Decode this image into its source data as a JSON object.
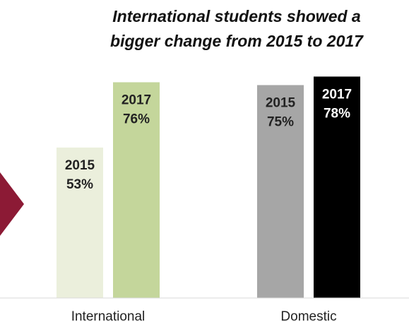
{
  "title_lines": [
    "International students showed a",
    "bigger change from 2015 to 2017"
  ],
  "chart_data": {
    "type": "bar",
    "title": "International students showed a bigger change from 2015 to 2017",
    "xlabel": "",
    "ylabel": "",
    "ylim": [
      0,
      100
    ],
    "grid": false,
    "categories": [
      "International",
      "Domestic"
    ],
    "series": [
      {
        "name": "2015",
        "values": [
          53,
          75
        ],
        "labels": [
          "53%",
          "75%"
        ],
        "colors": [
          "#ebefdc",
          "#a6a6a6"
        ]
      },
      {
        "name": "2017",
        "values": [
          76,
          78
        ],
        "labels": [
          "76%",
          "78%"
        ],
        "colors": [
          "#c4d69b",
          "#000000"
        ]
      }
    ]
  },
  "colors": {
    "label_dark": "#222222",
    "label_light": "#ffffff",
    "axis": "#d9d9d9",
    "arrow": "#8c1a35"
  },
  "decoration": {
    "arrow_icon": "chevron-right-icon"
  }
}
